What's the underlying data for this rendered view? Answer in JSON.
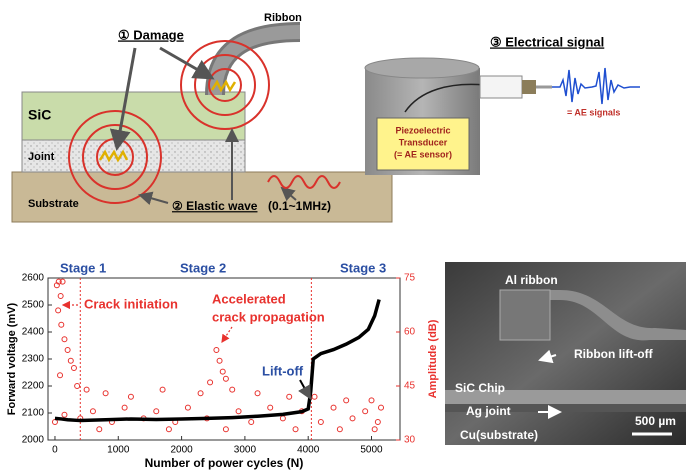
{
  "diagram": {
    "labels": {
      "ribbon": "Ribbon",
      "damage": "① Damage",
      "electrical_signal": "③ Electrical signal",
      "sic": "SiC",
      "joint": "Joint",
      "substrate": "Substrate",
      "elastic_wave": "② Elastic wave",
      "frequency": "(0.1~1MHz)",
      "transducer": [
        "Piezoelectric",
        "Transducer",
        "(= AE sensor)"
      ],
      "ae_signals": "= AE signals"
    }
  },
  "chart_data": {
    "type": "line",
    "xlabel": "Number of power cycles (N)",
    "ylabel": "Forward voltage (mV)",
    "y2label": "Amplitude (dB)",
    "annotations": [
      "Stage 1",
      "Stage 2",
      "Stage 3",
      "Crack initiation",
      "Accelerated",
      "crack propagation",
      "Lift-off"
    ],
    "stage_boundaries": [
      400,
      4050
    ],
    "xlim": [
      -110,
      5450
    ],
    "xticks": [
      0,
      1000,
      2000,
      3000,
      4000,
      5000
    ],
    "ylim": [
      2000,
      2600
    ],
    "yticks": [
      2000,
      2100,
      2200,
      2300,
      2400,
      2500,
      2600
    ],
    "y2lim": [
      30,
      75
    ],
    "y2ticks": [
      30,
      45,
      60,
      75
    ],
    "series": [
      {
        "type": "line",
        "color": "#000000",
        "x": [
          0,
          100,
          200,
          400,
          800,
          1200,
          1600,
          2000,
          2400,
          2800,
          3200,
          3600,
          3900,
          4000,
          4040,
          4080,
          4200,
          4400,
          4600,
          4800,
          4950,
          5050,
          5120
        ],
        "values": [
          2080,
          2078,
          2075,
          2072,
          2075,
          2078,
          2076,
          2078,
          2080,
          2083,
          2088,
          2095,
          2105,
          2115,
          2180,
          2300,
          2320,
          2335,
          2355,
          2380,
          2410,
          2460,
          2520
        ]
      },
      {
        "type": "scatter",
        "axis": "y2",
        "color": "#e8322e",
        "x": [
          30,
          60,
          90,
          120,
          50,
          100,
          150,
          200,
          250,
          300,
          80,
          350,
          500,
          800,
          1200,
          1700,
          2300,
          2450,
          2550,
          2600,
          2650,
          2700,
          2800,
          3200,
          3700,
          4100,
          4600,
          5000,
          0,
          150,
          400,
          600,
          900,
          1100,
          1400,
          1600,
          1900,
          2100,
          2400,
          2900,
          3100,
          3400,
          3600,
          3900,
          4200,
          4400,
          4700,
          4900,
          5100,
          5150,
          700,
          1800,
          2700,
          3800,
          4500,
          5050
        ],
        "values": [
          73,
          74,
          70,
          74,
          66,
          62,
          58,
          55,
          52,
          50,
          48,
          45,
          44,
          43,
          42,
          44,
          43,
          46,
          55,
          52,
          49,
          47,
          44,
          43,
          42,
          42,
          41,
          41,
          35,
          37,
          36,
          38,
          35,
          39,
          36,
          38,
          35,
          39,
          36,
          38,
          35,
          39,
          36,
          38,
          35,
          39,
          36,
          38,
          35,
          39,
          33,
          33,
          33,
          33,
          33,
          33
        ]
      }
    ]
  },
  "micrograph": {
    "labels": [
      "Al ribbon",
      "Ribbon lift-off",
      "SiC Chip",
      "Ag joint",
      "Cu(substrate)"
    ],
    "scale_bar": "500 µm"
  }
}
